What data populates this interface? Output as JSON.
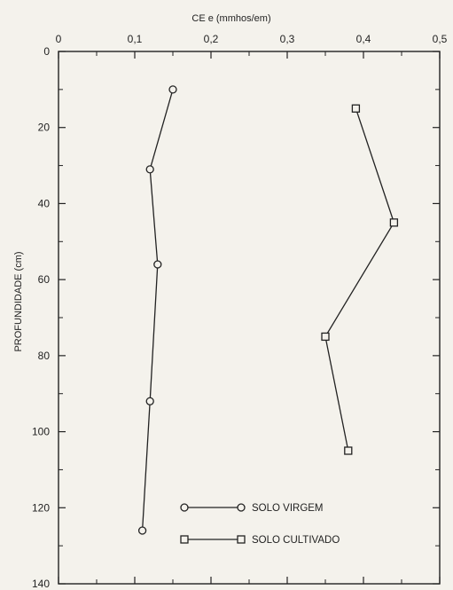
{
  "chart_data": {
    "type": "line",
    "xlabel": "CE e (mmhos/em)",
    "ylabel": "PROFUNDIDADE (cm)",
    "xlim": [
      0,
      0.5
    ],
    "ylim": [
      140,
      0
    ],
    "x_ticks": [
      "0",
      "0,1",
      "0,2",
      "0,3",
      "0,4",
      "0,5"
    ],
    "y_ticks": [
      "0",
      "20",
      "40",
      "60",
      "80",
      "100",
      "120",
      "140"
    ],
    "y_inverted": true,
    "grid": false,
    "legend_position": "bottom-center",
    "series": [
      {
        "name": "SOLO VIRGEM",
        "marker": "circle",
        "points": [
          {
            "x": 0.15,
            "y": 10
          },
          {
            "x": 0.12,
            "y": 31
          },
          {
            "x": 0.13,
            "y": 56
          },
          {
            "x": 0.12,
            "y": 92
          },
          {
            "x": 0.11,
            "y": 126
          }
        ]
      },
      {
        "name": "SOLO CULTIVADO",
        "marker": "square",
        "points": [
          {
            "x": 0.39,
            "y": 15
          },
          {
            "x": 0.44,
            "y": 45
          },
          {
            "x": 0.35,
            "y": 75
          },
          {
            "x": 0.38,
            "y": 105
          }
        ]
      }
    ]
  }
}
